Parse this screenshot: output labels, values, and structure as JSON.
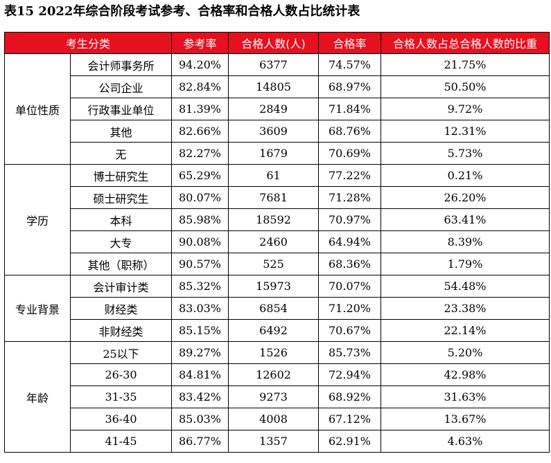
{
  "title": "表15  2022年综合阶段考试参考、合格率和合格人数占比统计表",
  "headers": [
    "考生分类",
    "参考率",
    "合格人数(人)",
    "合格率",
    "合格人数占总合格人数的比重"
  ],
  "groups": [
    {
      "name": "单位性质",
      "rows": [
        {
          "label": "会计师事务所",
          "rate": "94.20%",
          "count": "6377",
          "pass": "74.57%",
          "share": "21.75%"
        },
        {
          "label": "公司企业",
          "rate": "82.84%",
          "count": "14805",
          "pass": "68.97%",
          "share": "50.50%"
        },
        {
          "label": "行政事业单位",
          "rate": "81.39%",
          "count": "2849",
          "pass": "71.84%",
          "share": "9.72%"
        },
        {
          "label": "其他",
          "rate": "82.66%",
          "count": "3609",
          "pass": "68.76%",
          "share": "12.31%"
        },
        {
          "label": "无",
          "rate": "82.27%",
          "count": "1679",
          "pass": "70.69%",
          "share": "5.73%"
        }
      ]
    },
    {
      "name": "学历",
      "rows": [
        {
          "label": "博士研究生",
          "rate": "65.29%",
          "count": "61",
          "pass": "77.22%",
          "share": "0.21%"
        },
        {
          "label": "硕士研究生",
          "rate": "80.07%",
          "count": "7681",
          "pass": "71.28%",
          "share": "26.20%"
        },
        {
          "label": "本科",
          "rate": "85.98%",
          "count": "18592",
          "pass": "70.97%",
          "share": "63.41%"
        },
        {
          "label": "大专",
          "rate": "90.08%",
          "count": "2460",
          "pass": "64.94%",
          "share": "8.39%"
        },
        {
          "label": "其他（职称）",
          "rate": "90.57%",
          "count": "525",
          "pass": "68.36%",
          "share": "1.79%"
        }
      ]
    },
    {
      "name": "专业背景",
      "rows": [
        {
          "label": "会计审计类",
          "rate": "85.32%",
          "count": "15973",
          "pass": "70.07%",
          "share": "54.48%"
        },
        {
          "label": "财经类",
          "rate": "83.03%",
          "count": "6854",
          "pass": "71.20%",
          "share": "23.38%"
        },
        {
          "label": "非财经类",
          "rate": "85.15%",
          "count": "6492",
          "pass": "70.67%",
          "share": "22.14%"
        }
      ]
    },
    {
      "name": "年龄",
      "rows": [
        {
          "label": "25以下",
          "rate": "89.27%",
          "count": "1526",
          "pass": "85.73%",
          "share": "5.20%"
        },
        {
          "label": "26-30",
          "rate": "84.81%",
          "count": "12602",
          "pass": "72.94%",
          "share": "42.98%"
        },
        {
          "label": "31-35",
          "rate": "83.42%",
          "count": "9273",
          "pass": "68.92%",
          "share": "31.63%"
        },
        {
          "label": "36-40",
          "rate": "85.03%",
          "count": "4008",
          "pass": "67.12%",
          "share": "13.67%"
        },
        {
          "label": "41-45",
          "rate": "86.77%",
          "count": "1357",
          "pass": "62.91%",
          "share": "4.63%"
        }
      ]
    }
  ]
}
